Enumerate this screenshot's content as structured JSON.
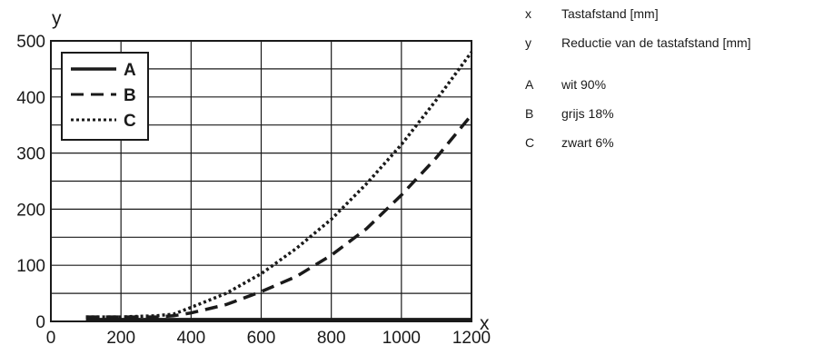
{
  "chart_data": {
    "type": "line",
    "xlabel": "x",
    "ylabel": "y",
    "xlim": [
      0,
      1200
    ],
    "ylim": [
      0,
      500
    ],
    "x_ticks": [
      0,
      200,
      400,
      600,
      800,
      1000,
      1200
    ],
    "y_ticks": [
      0,
      100,
      200,
      300,
      400,
      500
    ],
    "grid": true,
    "legend_position": "top-left",
    "series": [
      {
        "name": "A",
        "style": "solid",
        "x": [
          100,
          300,
          500,
          700,
          900,
          1100,
          1200
        ],
        "y": [
          3,
          3,
          3,
          3,
          3,
          3,
          3
        ]
      },
      {
        "name": "B",
        "style": "dashed",
        "x": [
          100,
          200,
          300,
          350,
          400,
          500,
          600,
          700,
          800,
          900,
          1000,
          1100,
          1200
        ],
        "y": [
          8,
          8,
          8,
          10,
          15,
          30,
          53,
          80,
          118,
          165,
          225,
          292,
          368
        ]
      },
      {
        "name": "C",
        "style": "dotted",
        "x": [
          100,
          200,
          300,
          350,
          400,
          500,
          600,
          700,
          800,
          900,
          1000,
          1100,
          1200
        ],
        "y": [
          8,
          8,
          10,
          13,
          25,
          50,
          85,
          130,
          182,
          245,
          315,
          395,
          480
        ]
      }
    ]
  },
  "key": [
    {
      "symbol": "x",
      "text": "Tastafstand [mm]"
    },
    {
      "symbol": "y",
      "text": "Reductie van de tastafstand [mm]"
    },
    {
      "symbol": "A",
      "text": "wit 90%"
    },
    {
      "symbol": "B",
      "text": "grijs 18%"
    },
    {
      "symbol": "C",
      "text": "zwart 6%"
    }
  ]
}
